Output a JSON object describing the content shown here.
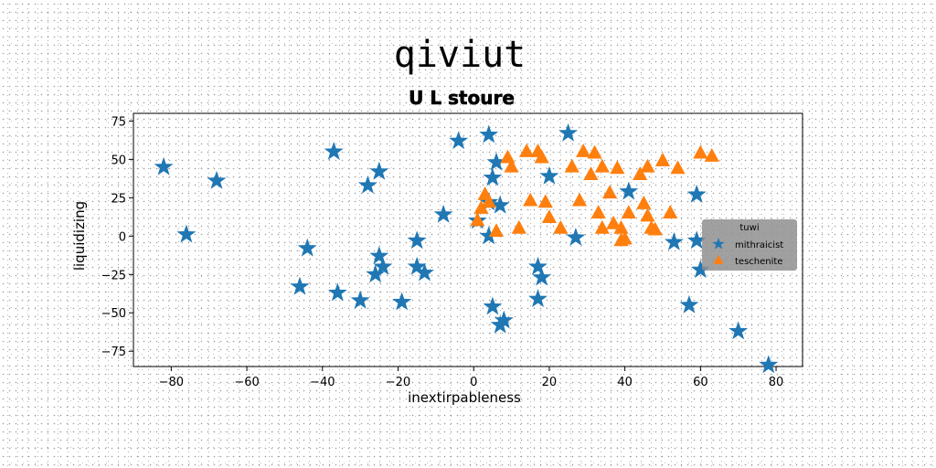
{
  "chart_data": {
    "type": "scatter",
    "title": "qiviut",
    "subtitle": "U L stoure",
    "xlabel": "inextirpableness",
    "ylabel": "liquidizing",
    "xlim": [
      -90,
      87
    ],
    "ylim": [
      -85,
      80
    ],
    "xticks": [
      -80,
      -60,
      -40,
      -20,
      0,
      20,
      40,
      60,
      80
    ],
    "yticks": [
      -75,
      -50,
      -25,
      0,
      25,
      50,
      75
    ],
    "grid": false,
    "legend": {
      "title": "tuwi",
      "position": "right"
    },
    "series": [
      {
        "name": "mithraicist",
        "marker": "star",
        "color": "#1f77b4",
        "points": [
          [
            -82,
            45
          ],
          [
            -76,
            1
          ],
          [
            -68,
            36
          ],
          [
            -37,
            55
          ],
          [
            -44,
            -8
          ],
          [
            -46,
            -33
          ],
          [
            -36,
            -37
          ],
          [
            -30,
            -42
          ],
          [
            -28,
            33
          ],
          [
            -25,
            42
          ],
          [
            -25,
            -13
          ],
          [
            -24,
            -20
          ],
          [
            -26,
            -25
          ],
          [
            -19,
            -43
          ],
          [
            -15,
            -3
          ],
          [
            -15,
            -20
          ],
          [
            -13,
            -24
          ],
          [
            -8,
            14
          ],
          [
            -4,
            62
          ],
          [
            4,
            66
          ],
          [
            5,
            38
          ],
          [
            6,
            48
          ],
          [
            4,
            22
          ],
          [
            7,
            20
          ],
          [
            1,
            10
          ],
          [
            4,
            0
          ],
          [
            5,
            -46
          ],
          [
            7,
            -58
          ],
          [
            8,
            -55
          ],
          [
            17,
            -20
          ],
          [
            18,
            -27
          ],
          [
            17,
            -41
          ],
          [
            20,
            39
          ],
          [
            25,
            67
          ],
          [
            27,
            -1
          ],
          [
            41,
            29
          ],
          [
            53,
            -4
          ],
          [
            59,
            27
          ],
          [
            59,
            -3
          ],
          [
            60,
            -22
          ],
          [
            57,
            -45
          ],
          [
            70,
            -62
          ],
          [
            78,
            -84
          ]
        ]
      },
      {
        "name": "teschenite",
        "marker": "triangle",
        "color": "#ff7f0e",
        "points": [
          [
            1,
            10
          ],
          [
            2,
            18
          ],
          [
            3,
            27
          ],
          [
            4,
            22
          ],
          [
            6,
            3
          ],
          [
            9,
            51
          ],
          [
            10,
            45
          ],
          [
            12,
            5
          ],
          [
            14,
            55
          ],
          [
            15,
            23
          ],
          [
            17,
            55
          ],
          [
            18,
            51
          ],
          [
            19,
            22
          ],
          [
            20,
            12
          ],
          [
            23,
            5
          ],
          [
            26,
            45
          ],
          [
            28,
            23
          ],
          [
            29,
            55
          ],
          [
            31,
            40
          ],
          [
            32,
            54
          ],
          [
            34,
            45
          ],
          [
            33,
            15
          ],
          [
            34,
            5
          ],
          [
            36,
            28
          ],
          [
            37,
            8
          ],
          [
            38,
            44
          ],
          [
            39,
            5
          ],
          [
            40,
            -2
          ],
          [
            39,
            -3
          ],
          [
            41,
            15
          ],
          [
            44,
            40
          ],
          [
            45,
            21
          ],
          [
            46,
            45
          ],
          [
            46,
            13
          ],
          [
            47,
            5
          ],
          [
            48,
            4
          ],
          [
            50,
            49
          ],
          [
            52,
            15
          ],
          [
            54,
            44
          ],
          [
            60,
            54
          ],
          [
            63,
            52
          ]
        ]
      }
    ]
  }
}
